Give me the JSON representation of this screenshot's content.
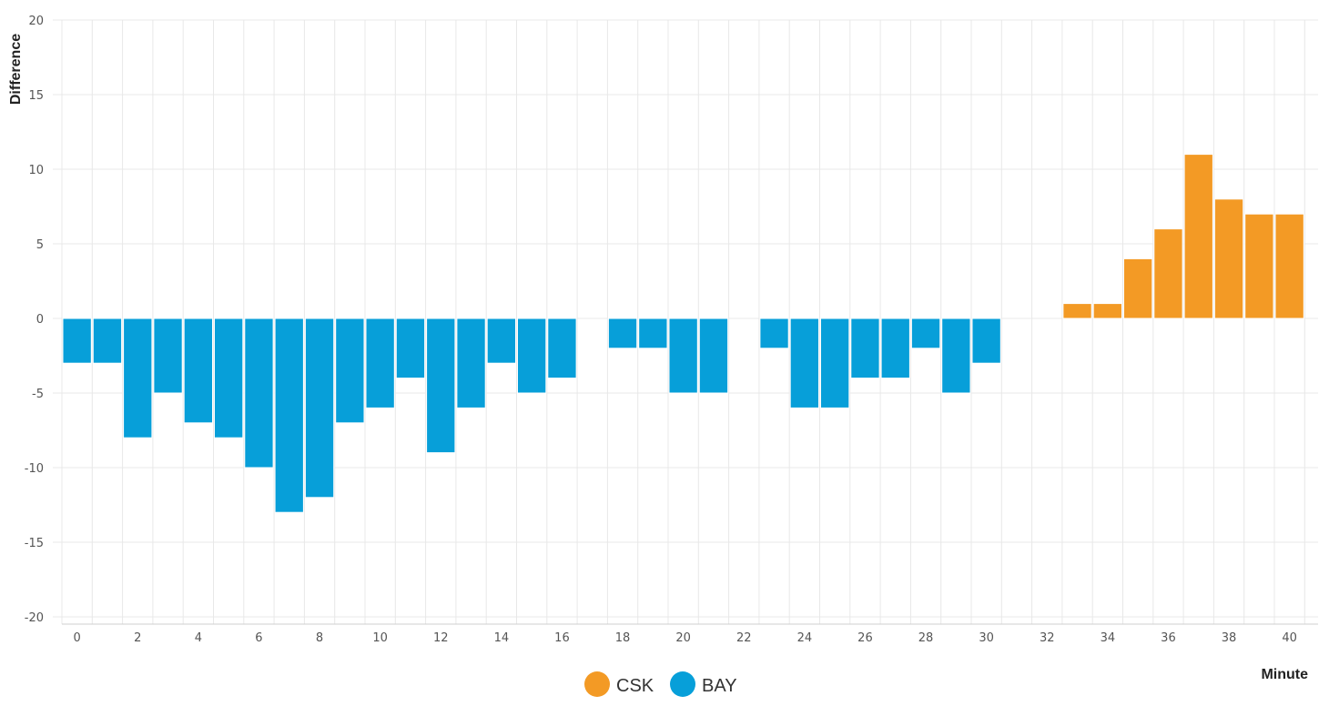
{
  "chart_data": {
    "type": "bar",
    "xlabel": "Minute",
    "ylabel": "Difference",
    "xlim": [
      0,
      41
    ],
    "ylim": [
      -20,
      20
    ],
    "x_ticks": [
      0,
      2,
      4,
      6,
      8,
      10,
      12,
      14,
      16,
      18,
      20,
      22,
      24,
      26,
      28,
      30,
      32,
      34,
      36,
      38,
      40
    ],
    "y_ticks": [
      20,
      15,
      10,
      5,
      0,
      -5,
      -10,
      -15,
      -20
    ],
    "grid": true,
    "legend_position": "bottom-center",
    "series": [
      {
        "name": "CSK",
        "color": "#f39a25",
        "x": [
          33,
          34,
          35,
          36,
          37,
          38,
          39,
          40
        ],
        "values": [
          1,
          1,
          4,
          6,
          11,
          8,
          7,
          7
        ]
      },
      {
        "name": "BAY",
        "color": "#079fd9",
        "x": [
          0,
          1,
          2,
          3,
          4,
          5,
          6,
          7,
          8,
          9,
          10,
          11,
          12,
          13,
          14,
          15,
          16,
          18,
          19,
          20,
          21,
          23,
          24,
          25,
          26,
          27,
          28,
          29,
          30
        ],
        "values": [
          -3,
          -3,
          -8,
          -5,
          -7,
          -8,
          -10,
          -13,
          -12,
          -7,
          -6,
          -4,
          -9,
          -6,
          -3,
          -5,
          -4,
          -2,
          -2,
          -5,
          -5,
          -2,
          -6,
          -6,
          -4,
          -4,
          -2,
          -5,
          -3
        ]
      }
    ]
  }
}
